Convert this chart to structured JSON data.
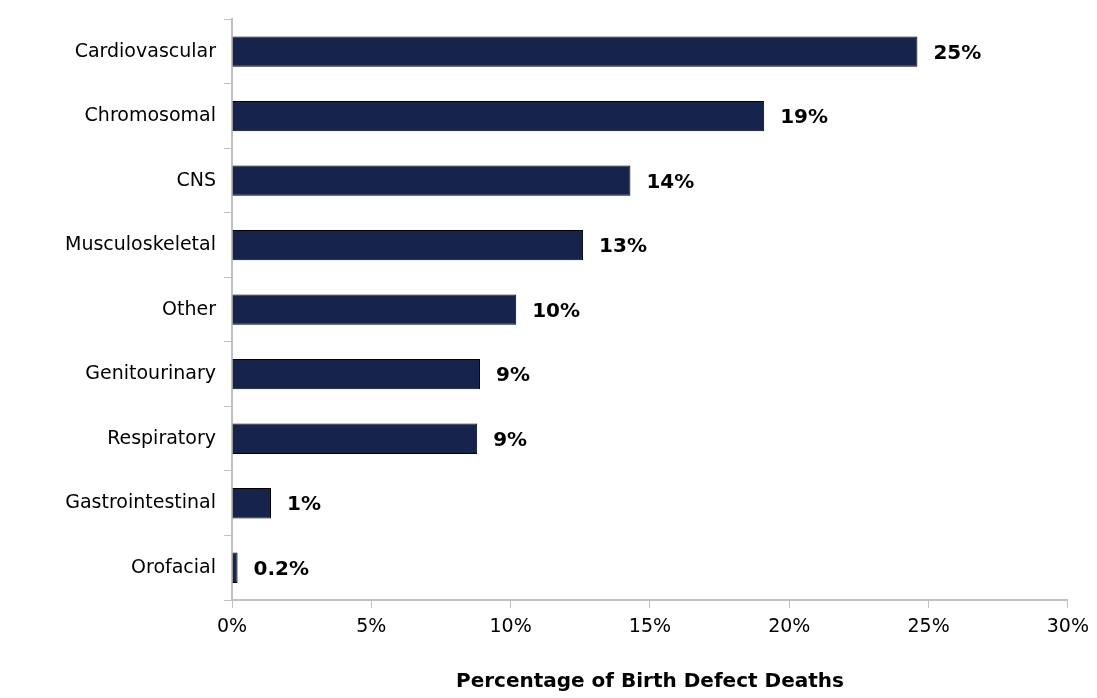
{
  "chart_data": {
    "type": "bar",
    "orientation": "horizontal",
    "xlabel": "Percentage of Birth Defect Deaths",
    "categories": [
      "Cardiovascular",
      "Chromosomal",
      "CNS",
      "Musculoskeletal",
      "Other",
      "Genitourinary",
      "Respiratory",
      "Gastrointestinal",
      "Orofacial"
    ],
    "values": [
      24.6,
      19.1,
      14.3,
      12.6,
      10.2,
      8.9,
      8.8,
      1.4,
      0.2
    ],
    "value_labels": [
      "25%",
      "19%",
      "14%",
      "13%",
      "10%",
      "9%",
      "9%",
      "1%",
      "0.2%"
    ],
    "color": "#16234a",
    "xlim": [
      0,
      30
    ],
    "xticks": [
      {
        "value": 0,
        "label": "0%"
      },
      {
        "value": 5,
        "label": "5%"
      },
      {
        "value": 10,
        "label": "10%"
      },
      {
        "value": 15,
        "label": "15%"
      },
      {
        "value": 20,
        "label": "20%"
      },
      {
        "value": 25,
        "label": "25%"
      },
      {
        "value": 30,
        "label": "30%"
      }
    ]
  }
}
